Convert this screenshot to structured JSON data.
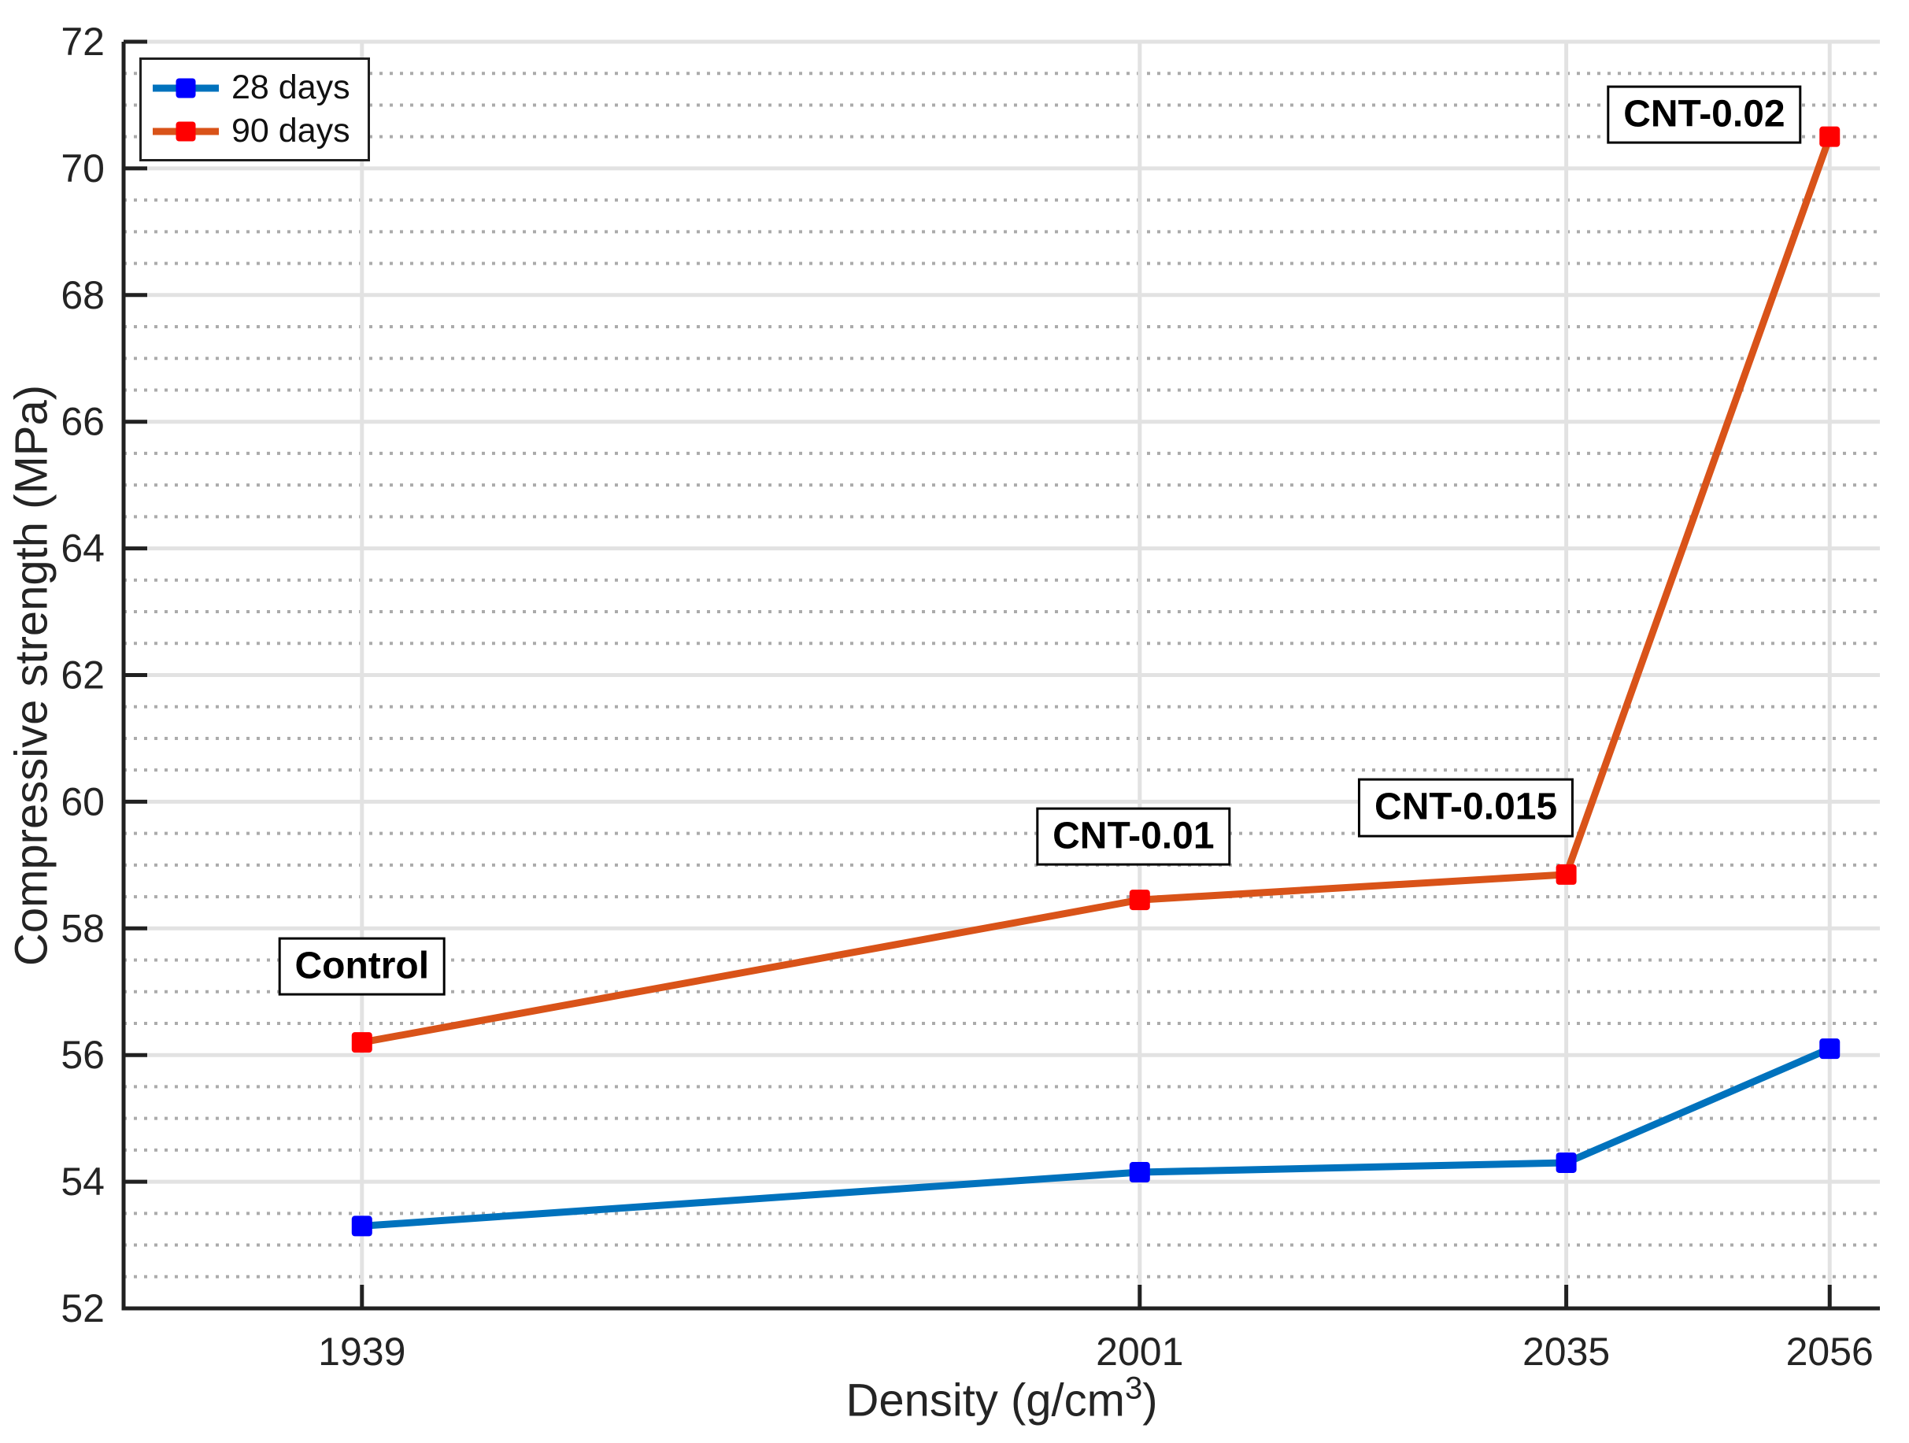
{
  "chart_data": {
    "type": "line",
    "title": "",
    "xlabel": "Density (g/cm³)",
    "xlabel_base": "Density (g/cm",
    "xlabel_sup": "3",
    "xlabel_close": ")",
    "ylabel": "Compressive strength (MPa)",
    "x": [
      1939,
      2001,
      2035,
      2056
    ],
    "xticks": [
      "1939",
      "2001",
      "2035",
      "2056"
    ],
    "yticks": [
      52,
      54,
      56,
      58,
      60,
      62,
      64,
      66,
      68,
      70,
      72
    ],
    "xlim": [
      1920,
      2060
    ],
    "ylim": [
      52,
      72
    ],
    "minor_grid_step": 0.5,
    "grid": "major solid horizontal+vertical, minor dotted horizontal",
    "legend_position": "top-left",
    "series": [
      {
        "name": "28 days",
        "line_color": "#0072BD",
        "marker_color": "#0000FF",
        "values": [
          53.3,
          54.15,
          54.3,
          56.1
        ]
      },
      {
        "name": "90 days",
        "line_color": "#D95319",
        "marker_color": "#FF0000",
        "values": [
          56.2,
          58.45,
          58.85,
          70.5
        ]
      }
    ],
    "annotations": [
      {
        "label": "Control",
        "x": 1939,
        "y": 57.4
      },
      {
        "label": "CNT-0.01",
        "x": 2000.5,
        "y": 59.45
      },
      {
        "label": "CNT-0.015",
        "x": 2027,
        "y": 59.9
      },
      {
        "label": "CNT-0.02",
        "x": 2046,
        "y": 70.85
      }
    ]
  },
  "colors": {
    "axis": "#212121",
    "tick_text": "#242424",
    "grid_major": "#e2e2e2",
    "grid_minor": "#ababab",
    "background": "#ffffff",
    "annotation_border": "#000000"
  }
}
